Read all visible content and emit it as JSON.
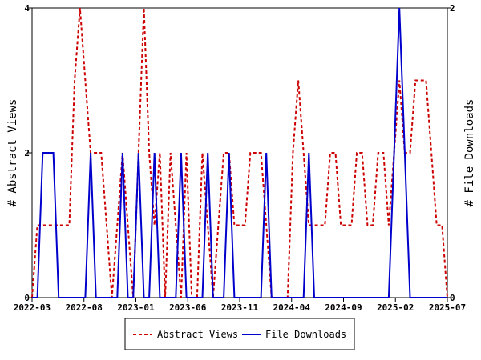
{
  "chart_data": {
    "type": "line",
    "x_tick_labels": [
      "2022-03",
      "2022-08",
      "2023-01",
      "2023-06",
      "2023-11",
      "2024-04",
      "2024-09",
      "2025-02",
      "2025-07"
    ],
    "left_axis": {
      "label": "# Abstract Views",
      "ylim": [
        0,
        4
      ],
      "ticks": [
        "0",
        "2",
        "4"
      ]
    },
    "right_axis": {
      "label": "# File Downloads",
      "ylim": [
        0,
        2
      ],
      "ticks": [
        "0",
        "2"
      ]
    },
    "grid": false,
    "legend_position": "bottom-center",
    "series": [
      {
        "name": "Abstract Views",
        "axis": "left",
        "color": "#cc0000",
        "style": "dashed",
        "values": [
          0,
          1,
          1,
          1,
          1,
          1,
          1,
          1,
          3,
          4,
          3,
          2,
          2,
          2,
          1,
          0,
          1,
          2,
          1,
          0,
          2,
          4,
          2,
          1,
          2,
          0,
          2,
          1,
          0,
          2,
          0,
          0,
          2,
          1,
          0,
          1,
          2,
          2,
          1,
          1,
          1,
          2,
          2,
          2,
          1,
          0,
          0,
          0,
          0,
          2,
          3,
          2,
          1,
          1,
          1,
          1,
          2,
          2,
          1,
          1,
          1,
          2,
          2,
          1,
          1,
          2,
          2,
          1,
          2,
          3,
          2,
          2,
          3,
          3,
          3,
          2,
          1,
          1,
          0
        ]
      },
      {
        "name": "File Downloads",
        "axis": "right",
        "color": "#0000cc",
        "style": "solid",
        "values": [
          0,
          0,
          1,
          1,
          1,
          0,
          0,
          0,
          0,
          0,
          0,
          1,
          0,
          0,
          0,
          0,
          0,
          1,
          0,
          0,
          1,
          0,
          0,
          1,
          0,
          0,
          0,
          0,
          1,
          0,
          0,
          0,
          0,
          1,
          0,
          0,
          0,
          1,
          0,
          0,
          0,
          0,
          0,
          0,
          1,
          0,
          0,
          0,
          0,
          0,
          0,
          0,
          1,
          0,
          0,
          0,
          0,
          0,
          0,
          0,
          0,
          0,
          0,
          0,
          0,
          0,
          0,
          0,
          1,
          2,
          1,
          0,
          0,
          0,
          0,
          0,
          0,
          0,
          0
        ]
      }
    ]
  }
}
